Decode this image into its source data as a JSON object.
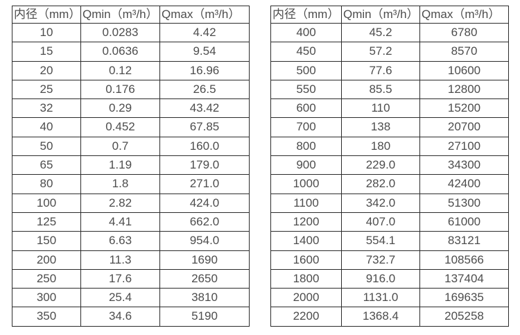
{
  "colors": {
    "background": "#ffffff",
    "border": "#2b2b2b",
    "text": "#4d4d4d"
  },
  "chart_data": [
    {
      "type": "table",
      "name": "flow-range-table-small-diameters",
      "headers": [
        "内径（mm）",
        "Qmin（m³/h）",
        "Qmax（m³/h）"
      ],
      "rows": [
        [
          "10",
          "0.0283",
          "4.42"
        ],
        [
          "15",
          "0.0636",
          "9.54"
        ],
        [
          "20",
          "0.12",
          "16.96"
        ],
        [
          "25",
          "0.176",
          "26.5"
        ],
        [
          "32",
          "0.29",
          "43.42"
        ],
        [
          "40",
          "0.452",
          "67.85"
        ],
        [
          "50",
          "0.7",
          "160.0"
        ],
        [
          "65",
          "1.19",
          "179.0"
        ],
        [
          "80",
          "1.8",
          "271.0"
        ],
        [
          "100",
          "2.82",
          "424.0"
        ],
        [
          "125",
          "4.41",
          "662.0"
        ],
        [
          "150",
          "6.63",
          "954.0"
        ],
        [
          "200",
          "11.3",
          "1690"
        ],
        [
          "250",
          "17.6",
          "2650"
        ],
        [
          "300",
          "25.4",
          "3810"
        ],
        [
          "350",
          "34.6",
          "5190"
        ]
      ]
    },
    {
      "type": "table",
      "name": "flow-range-table-large-diameters",
      "headers": [
        "内径（mm）",
        "Qmin（m³/h）",
        "Qmax（m³/h）"
      ],
      "rows": [
        [
          "400",
          "45.2",
          "6780"
        ],
        [
          "450",
          "57.2",
          "8570"
        ],
        [
          "500",
          "77.6",
          "10600"
        ],
        [
          "550",
          "85.5",
          "12800"
        ],
        [
          "600",
          "110",
          "15200"
        ],
        [
          "700",
          "138",
          "20700"
        ],
        [
          "800",
          "180",
          "27100"
        ],
        [
          "900",
          "229.0",
          "34300"
        ],
        [
          "1000",
          "282.0",
          "42400"
        ],
        [
          "1100",
          "342.0",
          "51300"
        ],
        [
          "1200",
          "407.0",
          "61000"
        ],
        [
          "1400",
          "554.1",
          "83121"
        ],
        [
          "1600",
          "732.7",
          "108566"
        ],
        [
          "1800",
          "916.0",
          "137404"
        ],
        [
          "2000",
          "1131.0",
          "169635"
        ],
        [
          "2200",
          "1368.4",
          "205258"
        ]
      ]
    }
  ]
}
